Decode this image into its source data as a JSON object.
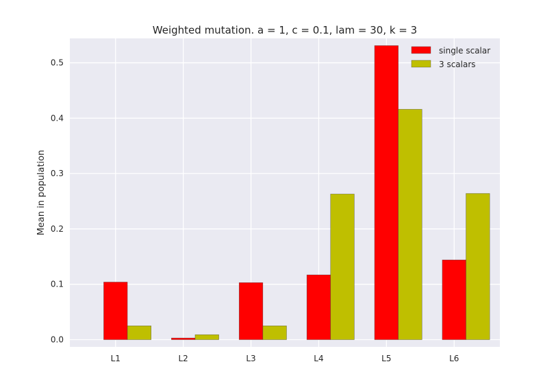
{
  "chart_data": {
    "type": "bar",
    "title": "Weighted mutation. a = 1, c = 0.1, lam = 30, k = 3",
    "xlabel": "",
    "ylabel": "Mean in population",
    "categories": [
      "L1",
      "L2",
      "L3",
      "L4",
      "L5",
      "L6"
    ],
    "series": [
      {
        "name": "single scalar",
        "color": "#ff0000",
        "values": [
          0.104,
          0.003,
          0.103,
          0.117,
          0.531,
          0.144
        ]
      },
      {
        "name": "3 scalars",
        "color": "#bfbf00",
        "values": [
          0.025,
          0.009,
          0.025,
          0.263,
          0.416,
          0.264
        ]
      }
    ],
    "ylim": [
      -0.013,
      0.544
    ],
    "yticks": [
      0.0,
      0.1,
      0.2,
      0.3,
      0.4,
      0.5
    ],
    "ytick_labels": [
      "0.0",
      "0.1",
      "0.2",
      "0.3",
      "0.4",
      "0.5"
    ],
    "grid": true,
    "legend_position": "top-right",
    "background_color": "#eaeaf2",
    "grid_color": "#ffffff"
  }
}
